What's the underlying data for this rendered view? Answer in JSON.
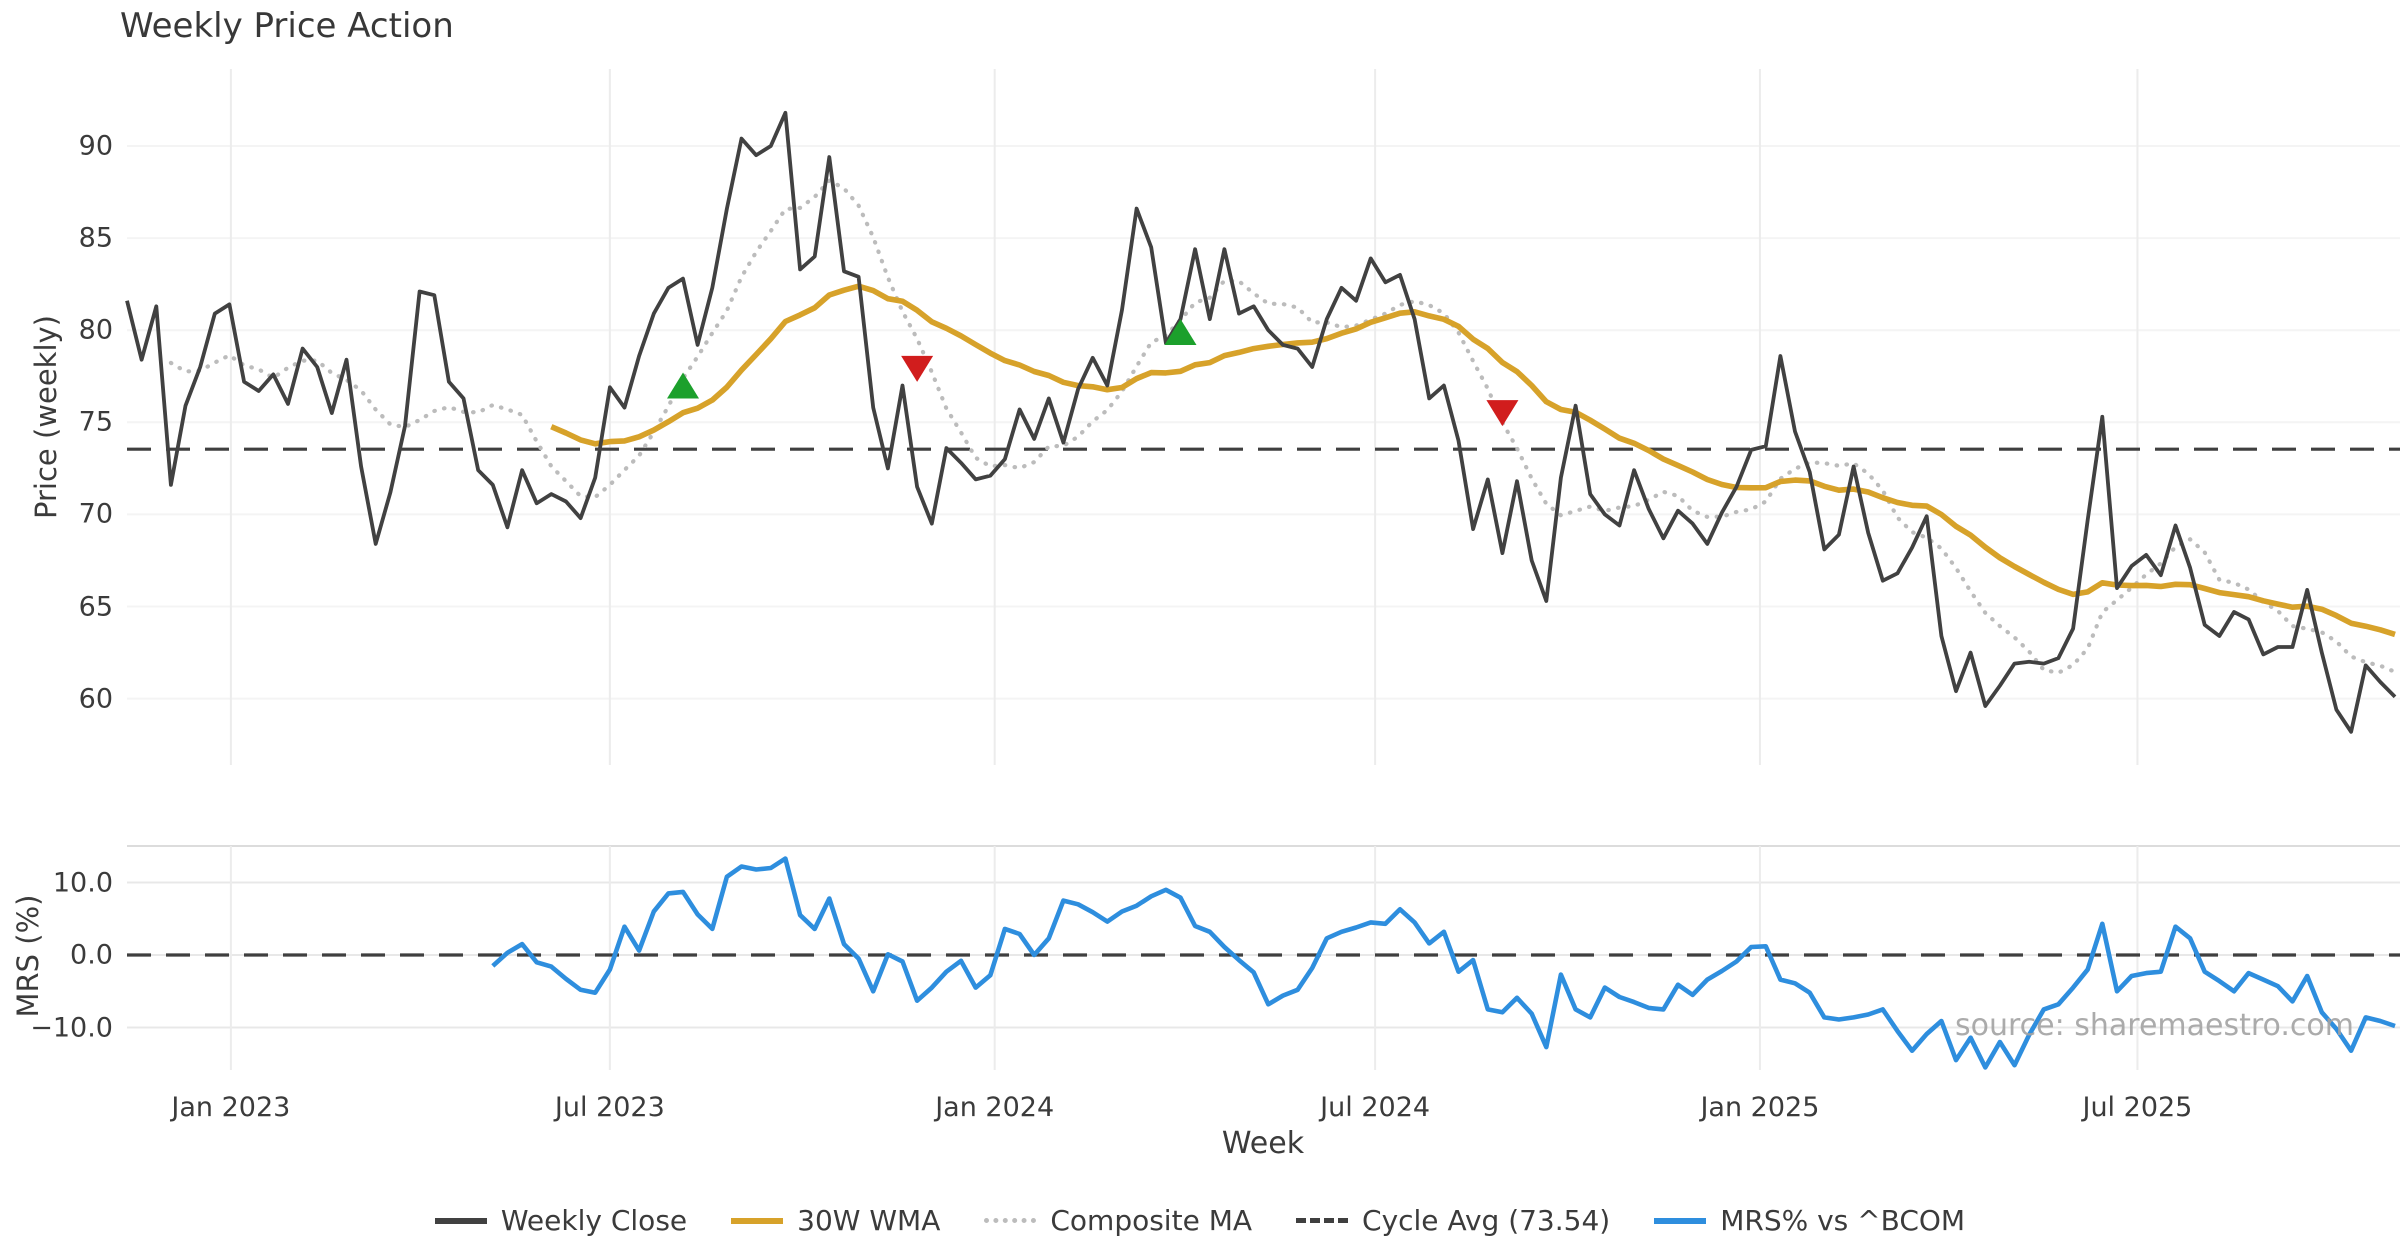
{
  "header": {
    "title": "Weekly Price Action"
  },
  "watermark": "source: sharemaestro.com",
  "colors": {
    "weekly_close": "#414141",
    "wma_30w": "#d7a22a",
    "composite_ma": "#bcbcbc",
    "cycle_avg": "#3f3f3f",
    "mrs_line": "#2e8ede",
    "buy_marker": "#1ca02c",
    "sell_marker": "#d11d1d",
    "grid": "#ececec",
    "text": "#3b3b3b"
  },
  "legend": [
    {
      "label": "Weekly Close",
      "color": "#414141",
      "style": "solid"
    },
    {
      "label": "30W WMA",
      "color": "#d7a22a",
      "style": "solid"
    },
    {
      "label": "Composite MA",
      "color": "#bcbcbc",
      "style": "dotted"
    },
    {
      "label": "Cycle Avg (73.54)",
      "color": "#3f3f3f",
      "style": "dashed"
    },
    {
      "label": "MRS% vs ^BCOM",
      "color": "#2e8ede",
      "style": "solid"
    }
  ],
  "chart_data": {
    "type": "line",
    "title": "Weekly Price Action",
    "xlabel": "Week",
    "x_range_weeks": 156,
    "x_tick_labels": [
      "Jan 2023",
      "Jul 2023",
      "Jan 2024",
      "Jul 2024",
      "Jan 2025",
      "Jul 2025"
    ],
    "x_tick_week_index": [
      7.1,
      33.0,
      59.3,
      85.3,
      111.6,
      137.4
    ],
    "panels": [
      {
        "name": "price",
        "ylabel": "Price (weekly)",
        "ytick_labels": [
          "90",
          "85",
          "80",
          "75",
          "70",
          "65",
          "60"
        ],
        "yticks": [
          90,
          85,
          80,
          75,
          70,
          65,
          60
        ],
        "ylim": [
          56.2,
          94.2
        ],
        "cycle_avg": 73.54
      },
      {
        "name": "mrs",
        "ylabel": "MRS (%)",
        "ytick_labels": [
          "10.0",
          "0.0",
          "−10.0"
        ],
        "yticks": [
          10.0,
          0.0,
          -10.0
        ],
        "ylim": [
          -15.9,
          15.5
        ],
        "zero_line": 0.0
      }
    ],
    "series": {
      "weekly_close": {
        "name": "Weekly Close",
        "start_week": 0,
        "values": [
          81.6,
          78.4,
          81.3,
          71.6,
          75.9,
          78.0,
          80.9,
          81.4,
          77.2,
          76.7,
          77.6,
          76.0,
          79.0,
          78.0,
          75.5,
          78.4,
          72.6,
          68.4,
          71.2,
          74.8,
          82.1,
          81.9,
          77.2,
          76.3,
          72.4,
          71.6,
          69.3,
          72.4,
          70.6,
          71.1,
          70.7,
          69.8,
          72.0,
          76.9,
          75.8,
          78.6,
          80.9,
          82.3,
          82.8,
          79.2,
          82.3,
          86.6,
          90.4,
          89.5,
          90.0,
          91.8,
          83.3,
          84.0,
          89.4,
          83.2,
          82.9,
          75.8,
          72.5,
          77.0,
          71.5,
          69.5,
          73.6,
          72.8,
          71.9,
          72.1,
          73.0,
          75.7,
          74.1,
          76.3,
          73.9,
          76.8,
          78.5,
          77.0,
          81.1,
          86.6,
          84.5,
          79.3,
          80.6,
          84.4,
          80.6,
          84.4,
          80.9,
          81.3,
          80.0,
          79.2,
          79.0,
          78.0,
          80.6,
          82.3,
          81.6,
          83.9,
          82.6,
          83.0,
          80.6,
          76.3,
          77.0,
          74.0,
          69.2,
          71.9,
          67.9,
          71.8,
          67.5,
          65.3,
          72.0,
          75.9,
          71.1,
          70.0,
          69.4,
          72.4,
          70.3,
          68.7,
          70.2,
          69.5,
          68.4,
          70.1,
          71.5,
          73.5,
          73.7,
          78.6,
          74.5,
          72.3,
          68.1,
          68.9,
          72.6,
          69.0,
          66.4,
          66.8,
          68.2,
          69.9,
          63.4,
          60.4,
          62.5,
          59.6,
          60.7,
          61.9,
          62.0,
          61.9,
          62.2,
          63.8,
          69.7,
          75.3,
          66.0,
          67.2,
          67.8,
          66.7,
          69.4,
          67.1,
          64.0,
          63.4,
          64.7,
          64.3,
          62.4,
          62.8,
          62.8,
          65.9,
          62.5,
          59.4,
          58.2,
          61.8,
          60.9,
          60.1
        ]
      },
      "wma_30w": {
        "name": "30W WMA",
        "derived": "30-week linearly weighted moving average of weekly_close",
        "start_week": 29,
        "window": 30
      },
      "composite_ma": {
        "name": "Composite MA",
        "derived": "8-week moving average of weekly_close (min 4 weeks)",
        "start_week": 3,
        "window": 8
      },
      "cycle_avg": {
        "name": "Cycle Avg (73.54)",
        "value": 73.54
      },
      "mrs_pct": {
        "name": "MRS% vs ^BCOM",
        "start_week": 25,
        "values": [
          -1.5,
          0.3,
          1.5,
          -1.0,
          -1.6,
          -3.3,
          -4.8,
          -5.2,
          -2.0,
          3.9,
          0.6,
          6.0,
          8.5,
          8.7,
          5.6,
          3.6,
          10.8,
          12.2,
          11.8,
          12.0,
          13.3,
          5.5,
          3.6,
          7.8,
          1.5,
          -0.5,
          -5.0,
          0.1,
          -0.9,
          -6.3,
          -4.5,
          -2.3,
          -0.8,
          -4.5,
          -2.8,
          3.6,
          2.9,
          0.0,
          2.3,
          7.5,
          7.0,
          5.9,
          4.6,
          6.0,
          6.8,
          8.1,
          9.0,
          7.9,
          4.0,
          3.2,
          1.1,
          -0.7,
          -2.4,
          -6.8,
          -5.6,
          -4.8,
          -1.8,
          2.3,
          3.2,
          3.8,
          4.5,
          4.3,
          6.3,
          4.5,
          1.6,
          3.2,
          -2.3,
          -0.7,
          -7.5,
          -7.9,
          -5.9,
          -8.1,
          -12.7,
          -2.7,
          -7.5,
          -8.6,
          -4.5,
          -5.8,
          -6.5,
          -7.3,
          -7.5,
          -4.1,
          -5.5,
          -3.4,
          -2.2,
          -0.9,
          1.1,
          1.2,
          -3.4,
          -3.9,
          -5.2,
          -8.6,
          -8.9,
          -8.6,
          -8.2,
          -7.5,
          -10.5,
          -13.2,
          -10.9,
          -9.1,
          -14.5,
          -11.4,
          -15.5,
          -12.0,
          -15.2,
          -11.0,
          -7.5,
          -6.8,
          -4.5,
          -2.0,
          4.3,
          -5.0,
          -2.9,
          -2.5,
          -2.3,
          3.9,
          2.3,
          -2.3,
          -3.6,
          -5.0,
          -2.5,
          -3.4,
          -4.3,
          -6.4,
          -2.9,
          -7.9,
          -10.2,
          -13.2,
          -8.6,
          -9.1,
          -9.8
        ]
      }
    },
    "signals": {
      "buy_markers": [
        {
          "week": 38,
          "price": 77.0
        },
        {
          "week": 72,
          "price": 79.9
        }
      ],
      "sell_markers": [
        {
          "week": 54,
          "price": 77.9
        },
        {
          "week": 94,
          "price": 75.5
        }
      ]
    }
  }
}
